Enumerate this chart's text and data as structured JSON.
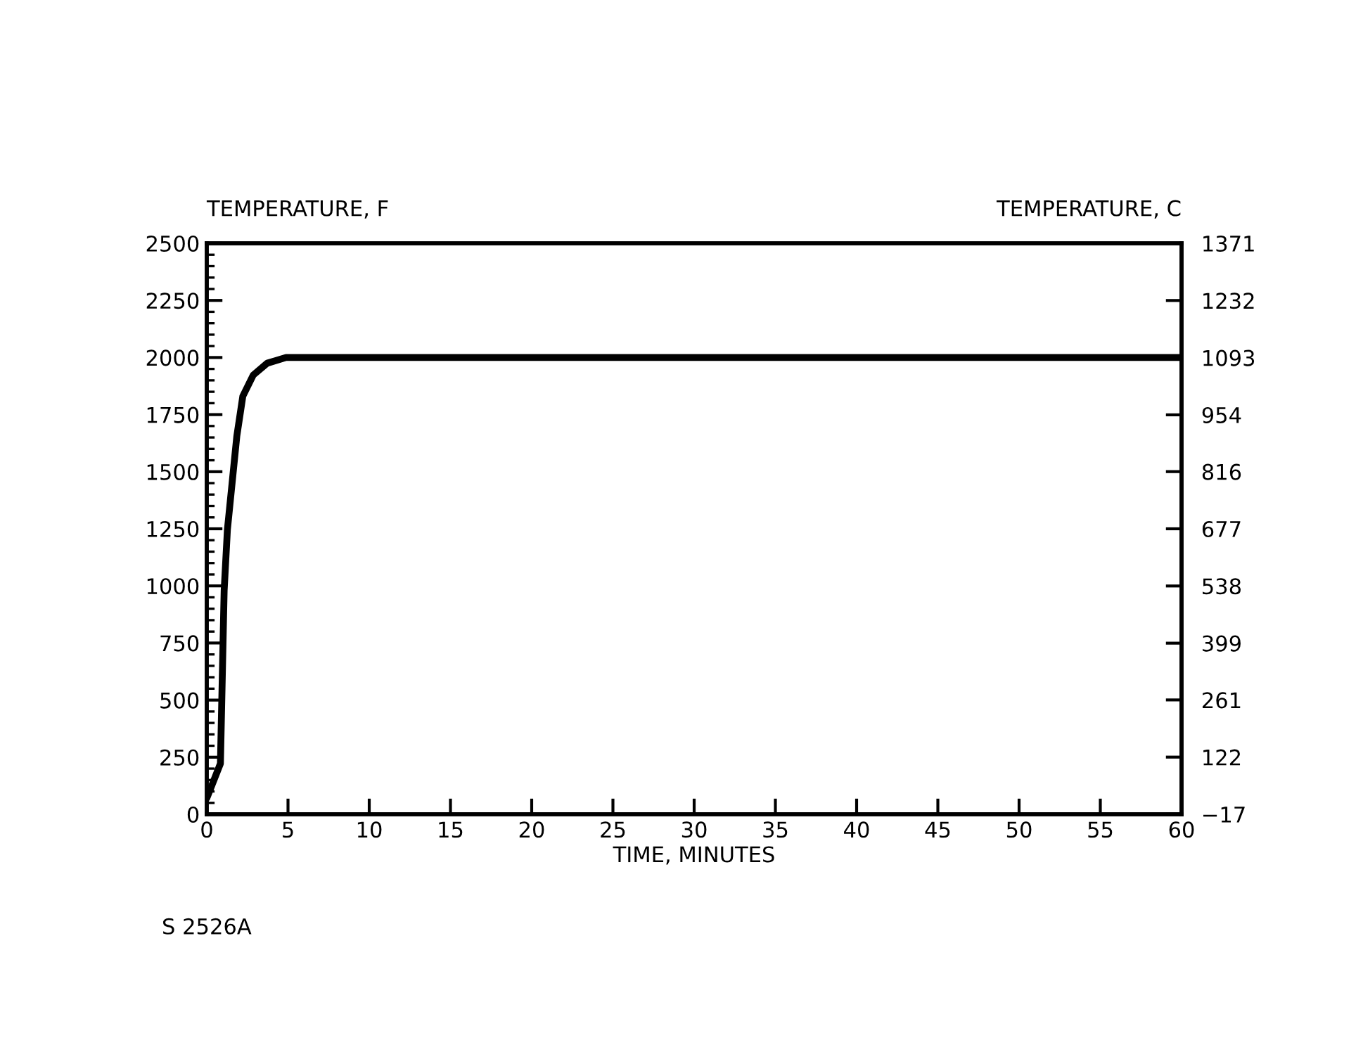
{
  "chart_data": {
    "type": "line",
    "ylabel": "TEMPERATURE, F",
    "y2label": "TEMPERATURE, C",
    "xlabel": "TIME, MINUTES",
    "annotations": [
      "S 2526A"
    ],
    "series": [
      {
        "color": "#000000",
        "x": [
          0,
          0.84,
          1.07,
          1.27,
          1.85,
          2.22,
          2.86,
          3.72,
          4.88,
          10,
          20,
          30,
          40,
          50,
          60
        ],
        "values": [
          70,
          222,
          980,
          1246,
          1656,
          1831,
          1923,
          1975,
          2000,
          2000,
          2000,
          2000,
          2000,
          2000,
          2000
        ]
      }
    ],
    "xlim": [
      0,
      60
    ],
    "xticks": [
      0,
      5,
      10,
      15,
      20,
      25,
      30,
      35,
      40,
      45,
      50,
      55,
      60
    ],
    "ylim": [
      0,
      2500
    ],
    "yticks": [
      0,
      250,
      500,
      750,
      1000,
      1250,
      1500,
      1750,
      2000,
      2250,
      2500
    ],
    "y2lim": [
      -17,
      1371
    ],
    "y2ticks": [
      -17,
      122,
      261,
      399,
      538,
      677,
      816,
      954,
      1093,
      1232,
      1371
    ],
    "grid": false,
    "legend": false,
    "marker": "none",
    "line_style": "solid"
  }
}
